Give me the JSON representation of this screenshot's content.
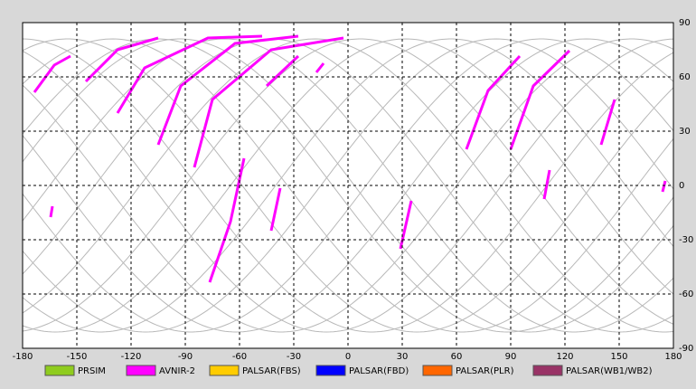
{
  "map": {
    "xlim": [
      -180,
      180
    ],
    "ylim": [
      -90,
      90
    ],
    "xticks": [
      -180,
      -150,
      -120,
      -90,
      -60,
      -30,
      0,
      30,
      60,
      90,
      120,
      150,
      180
    ],
    "yticks": [
      90,
      60,
      30,
      0,
      -30,
      -60,
      -90
    ],
    "legend": [
      {
        "name": "PRSIM",
        "color": "#8fcc1e"
      },
      {
        "name": "AVNIR-2",
        "color": "#ff00ff"
      },
      {
        "name": "PALSAR(FBS)",
        "color": "#ffcc00"
      },
      {
        "name": "PALSAR(FBD)",
        "color": "#0000ff"
      },
      {
        "name": "PALSAR(PLR)",
        "color": "#ff6600"
      },
      {
        "name": "PALSAR(WB1/WB2)",
        "color": "#993366"
      }
    ]
  }
}
